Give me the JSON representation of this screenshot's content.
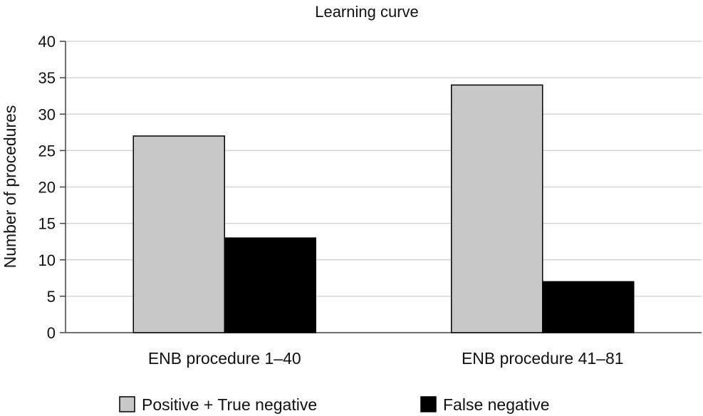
{
  "chart_data": {
    "type": "bar",
    "title": "Learning curve",
    "xlabel": "",
    "ylabel": "Number of procedures",
    "ylim": [
      0,
      40
    ],
    "yticks": [
      0,
      5,
      10,
      15,
      20,
      25,
      30,
      35,
      40
    ],
    "grid": true,
    "legend_position": "bottom",
    "categories": [
      "ENB procedure 1–40",
      "ENB procedure 41–81"
    ],
    "series": [
      {
        "name": "Positive + True negative",
        "values": [
          27,
          34
        ],
        "color": "#c8c8c8"
      },
      {
        "name": "False negative",
        "values": [
          13,
          7
        ],
        "color": "#000000"
      }
    ]
  }
}
